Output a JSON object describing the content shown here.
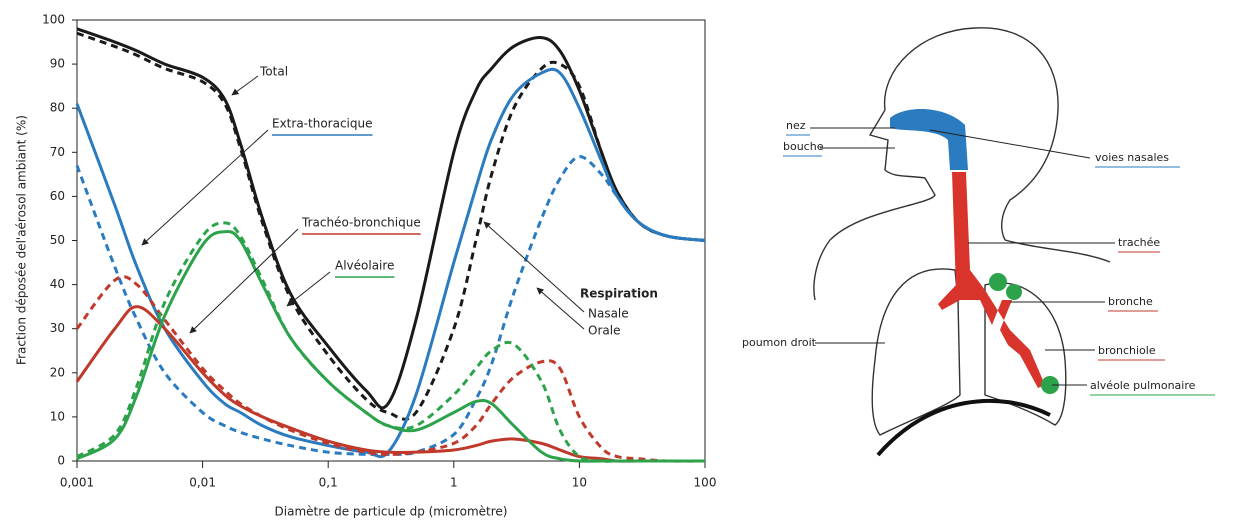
{
  "chart_data": {
    "type": "line",
    "xlabel": "Diamètre de particule dp (micromètre)",
    "ylabel": "Fraction déposée del'aérosol ambiant (%)",
    "xscale": "log",
    "x": [
      0.001,
      0.002,
      0.003,
      0.005,
      0.01,
      0.015,
      0.02,
      0.03,
      0.05,
      0.1,
      0.2,
      0.3,
      0.5,
      1,
      1.5,
      2,
      3,
      5,
      7,
      10,
      15,
      20,
      30,
      50,
      100
    ],
    "xlim": [
      0.001,
      100
    ],
    "xticks": [
      {
        "value": 0.001,
        "label": "0,001"
      },
      {
        "value": 0.01,
        "label": "0,01"
      },
      {
        "value": 0.1,
        "label": "0,1"
      },
      1,
      10,
      100
    ],
    "ylim": [
      0,
      100
    ],
    "yticks": [
      0,
      10,
      20,
      30,
      40,
      50,
      60,
      70,
      80,
      90,
      100
    ],
    "grid": false,
    "respiration": {
      "title": "Respiration",
      "nasale": "Nasale",
      "orale": "Orale"
    },
    "series": [
      {
        "name": "Total",
        "color": "#1a1a1a",
        "values": [
          98,
          95,
          93,
          90,
          87,
          82,
          72,
          55,
          38,
          26,
          16,
          13,
          32,
          70,
          84,
          89,
          94,
          96,
          93,
          84,
          70,
          61,
          54,
          51,
          50
        ],
        "values_orale": [
          97,
          94,
          92,
          89,
          86,
          81,
          71,
          54,
          37,
          24,
          14,
          11,
          11,
          30,
          50,
          65,
          80,
          89,
          90,
          85,
          70,
          61,
          54,
          51,
          50
        ]
      },
      {
        "name": "Extra-thoracique",
        "color": "#2a7bc0",
        "values": [
          81,
          58,
          44,
          30,
          18,
          13,
          11,
          8,
          5.5,
          3.5,
          2,
          2,
          15,
          45,
          62,
          73,
          83,
          88,
          88,
          80,
          68,
          60,
          54,
          51,
          50
        ],
        "values_orale": [
          67,
          44,
          32,
          20,
          11,
          8,
          6.5,
          5,
          3.5,
          2,
          1.5,
          1.5,
          2,
          6,
          14,
          22,
          38,
          55,
          64,
          69,
          65,
          60,
          54,
          51,
          50
        ]
      },
      {
        "name": "Trachéo-bronchique",
        "color": "#c0392b",
        "values": [
          18,
          30,
          35,
          30,
          20,
          15,
          12.5,
          10,
          7.5,
          4.5,
          2.5,
          2,
          2,
          2.5,
          3.5,
          4.5,
          5,
          4,
          2.5,
          1,
          0.5,
          0,
          0,
          0,
          0
        ],
        "values_orale": [
          30,
          41,
          40,
          32,
          21,
          16,
          13,
          10,
          7,
          4,
          2,
          1.5,
          2,
          4,
          8,
          13,
          19,
          22.5,
          21,
          10,
          3,
          1,
          0.5,
          0,
          0
        ]
      },
      {
        "name": "Alvéolaire",
        "color": "#2ca34a",
        "values": [
          0.5,
          5,
          15,
          33,
          49,
          52,
          50,
          40,
          28,
          18,
          11,
          8,
          7,
          11,
          13.5,
          13,
          8,
          2,
          0.5,
          0,
          0,
          0,
          0,
          0,
          0
        ],
        "values_orale": [
          1,
          6,
          17,
          36,
          51,
          54,
          51,
          41,
          28,
          18,
          11,
          8,
          8,
          15,
          21,
          25,
          26.5,
          18,
          7,
          1,
          0,
          0,
          0,
          0,
          0
        ]
      }
    ]
  },
  "diagram": {
    "labels": {
      "nez": "nez",
      "bouche": "bouche",
      "voies_nasales": "voies nasales",
      "trachee": "trachée",
      "bronche": "bronche",
      "bronchiole": "bronchiole",
      "alveole": "alvéole pulmonaire",
      "poumon_droit": "poumon droit"
    }
  }
}
